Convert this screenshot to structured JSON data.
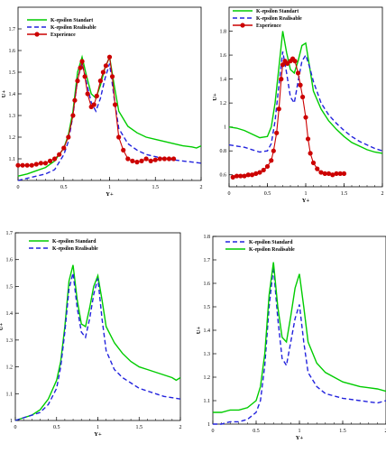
{
  "chart_data": [
    {
      "type": "line",
      "xlabel": "Y+",
      "ylabel": "U+",
      "xlim": [
        0,
        2
      ],
      "ylim": [
        1,
        1.8
      ],
      "xticks": [
        "0",
        "0.5",
        "1",
        "1.5",
        "2"
      ],
      "yticks": [
        "1.1",
        "1.2",
        "1.3",
        "1.4",
        "1.5",
        "1.6",
        "1.7"
      ],
      "legend_position": "top-left",
      "series": [
        {
          "name": "K-epsilon Standart",
          "color": "#00cc00",
          "style": "solid",
          "x": [
            0,
            0.1,
            0.2,
            0.3,
            0.4,
            0.5,
            0.55,
            0.6,
            0.65,
            0.7,
            0.75,
            0.8,
            0.85,
            0.9,
            0.95,
            1.0,
            1.05,
            1.1,
            1.2,
            1.3,
            1.4,
            1.5,
            1.6,
            1.7,
            1.8,
            1.9,
            1.95,
            2.0
          ],
          "y": [
            1.02,
            1.03,
            1.045,
            1.06,
            1.09,
            1.15,
            1.21,
            1.32,
            1.5,
            1.57,
            1.48,
            1.4,
            1.38,
            1.44,
            1.52,
            1.57,
            1.44,
            1.32,
            1.25,
            1.22,
            1.2,
            1.19,
            1.18,
            1.17,
            1.16,
            1.155,
            1.15,
            1.16
          ]
        },
        {
          "name": "K-epsilon Realisable",
          "color": "#2222dd",
          "style": "dashed",
          "x": [
            0,
            0.1,
            0.2,
            0.3,
            0.4,
            0.5,
            0.55,
            0.6,
            0.65,
            0.7,
            0.75,
            0.8,
            0.85,
            0.9,
            0.95,
            1.0,
            1.05,
            1.1,
            1.2,
            1.3,
            1.4,
            1.5,
            1.6,
            1.7,
            1.8,
            1.9,
            2.0
          ],
          "y": [
            1.0,
            1.01,
            1.02,
            1.03,
            1.05,
            1.12,
            1.18,
            1.3,
            1.47,
            1.54,
            1.45,
            1.36,
            1.32,
            1.38,
            1.47,
            1.54,
            1.38,
            1.24,
            1.17,
            1.14,
            1.12,
            1.11,
            1.1,
            1.095,
            1.09,
            1.085,
            1.08
          ]
        },
        {
          "name": "Experience",
          "color": "#cc0000",
          "style": "solid-circle",
          "x": [
            0,
            0.05,
            0.1,
            0.15,
            0.2,
            0.25,
            0.3,
            0.35,
            0.4,
            0.45,
            0.5,
            0.55,
            0.6,
            0.62,
            0.65,
            0.68,
            0.7,
            0.73,
            0.76,
            0.8,
            0.83,
            0.86,
            0.9,
            0.93,
            0.96,
            1.0,
            1.03,
            1.06,
            1.1,
            1.15,
            1.2,
            1.25,
            1.3,
            1.35,
            1.4,
            1.45,
            1.5,
            1.55,
            1.6,
            1.65,
            1.7
          ],
          "y": [
            1.07,
            1.07,
            1.07,
            1.07,
            1.075,
            1.08,
            1.08,
            1.09,
            1.1,
            1.12,
            1.15,
            1.2,
            1.3,
            1.37,
            1.46,
            1.52,
            1.55,
            1.48,
            1.4,
            1.34,
            1.35,
            1.39,
            1.46,
            1.5,
            1.53,
            1.57,
            1.48,
            1.35,
            1.2,
            1.14,
            1.1,
            1.09,
            1.085,
            1.09,
            1.1,
            1.09,
            1.095,
            1.1,
            1.1,
            1.1,
            1.1
          ]
        }
      ]
    },
    {
      "type": "line",
      "xlabel": "Y+",
      "ylabel": "U+",
      "xlim": [
        0,
        2
      ],
      "ylim": [
        0.5,
        2
      ],
      "xticks": [
        "0",
        "0.5",
        "1",
        "1.5",
        "2"
      ],
      "yticks": [
        "0.6",
        "0.8",
        "1",
        "1.2",
        "1.4",
        "1.6",
        "1.8"
      ],
      "legend_position": "top-center",
      "series": [
        {
          "name": "K-epsilon Standart",
          "color": "#00cc00",
          "style": "solid",
          "x": [
            0,
            0.1,
            0.2,
            0.3,
            0.4,
            0.5,
            0.55,
            0.6,
            0.65,
            0.7,
            0.75,
            0.8,
            0.85,
            0.9,
            0.95,
            1.0,
            1.05,
            1.1,
            1.2,
            1.3,
            1.4,
            1.5,
            1.6,
            1.7,
            1.8,
            1.9,
            2.0
          ],
          "y": [
            1.0,
            0.99,
            0.97,
            0.94,
            0.91,
            0.92,
            1.0,
            1.2,
            1.5,
            1.8,
            1.62,
            1.48,
            1.45,
            1.55,
            1.68,
            1.7,
            1.5,
            1.3,
            1.15,
            1.05,
            0.98,
            0.92,
            0.87,
            0.84,
            0.81,
            0.79,
            0.78
          ]
        },
        {
          "name": "K-epsilon Realisable",
          "color": "#2222dd",
          "style": "dashed",
          "x": [
            0,
            0.1,
            0.2,
            0.3,
            0.4,
            0.5,
            0.55,
            0.6,
            0.65,
            0.7,
            0.75,
            0.8,
            0.85,
            0.9,
            0.95,
            1.0,
            1.05,
            1.1,
            1.2,
            1.3,
            1.4,
            1.5,
            1.6,
            1.7,
            1.8,
            1.9,
            2.0
          ],
          "y": [
            0.85,
            0.84,
            0.83,
            0.81,
            0.79,
            0.8,
            0.86,
            1.05,
            1.35,
            1.63,
            1.45,
            1.25,
            1.2,
            1.38,
            1.55,
            1.6,
            1.5,
            1.38,
            1.2,
            1.1,
            1.03,
            0.97,
            0.92,
            0.88,
            0.85,
            0.82,
            0.8
          ]
        },
        {
          "name": "Experience",
          "color": "#cc0000",
          "style": "solid-circle",
          "x": [
            0.05,
            0.1,
            0.15,
            0.2,
            0.25,
            0.3,
            0.35,
            0.4,
            0.45,
            0.5,
            0.55,
            0.58,
            0.62,
            0.65,
            0.68,
            0.7,
            0.73,
            0.76,
            0.8,
            0.83,
            0.86,
            0.9,
            0.93,
            0.96,
            1.0,
            1.03,
            1.06,
            1.1,
            1.15,
            1.2,
            1.25,
            1.3,
            1.35,
            1.4,
            1.45,
            1.5
          ],
          "y": [
            0.58,
            0.59,
            0.59,
            0.59,
            0.6,
            0.6,
            0.61,
            0.62,
            0.64,
            0.67,
            0.72,
            0.8,
            0.95,
            1.15,
            1.4,
            1.52,
            1.55,
            1.53,
            1.55,
            1.57,
            1.55,
            1.45,
            1.35,
            1.25,
            1.08,
            0.9,
            0.78,
            0.7,
            0.65,
            0.62,
            0.61,
            0.61,
            0.6,
            0.61,
            0.61,
            0.61
          ]
        }
      ]
    },
    {
      "type": "line",
      "xlabel": "Y+",
      "ylabel": "U+",
      "xlim": [
        0,
        2
      ],
      "ylim": [
        1,
        1.7
      ],
      "xticks": [
        "0",
        "0.5",
        "1",
        "1.5",
        "2"
      ],
      "yticks": [
        "1",
        "1.1",
        "1.2",
        "1.3",
        "1.4",
        "1.5",
        "1.6",
        "1.7"
      ],
      "legend_position": "top-left",
      "series": [
        {
          "name": "K-epsilon Standard",
          "color": "#00cc00",
          "style": "solid",
          "x": [
            0,
            0.1,
            0.2,
            0.3,
            0.4,
            0.5,
            0.55,
            0.6,
            0.65,
            0.7,
            0.75,
            0.8,
            0.85,
            0.9,
            0.95,
            1.0,
            1.05,
            1.1,
            1.2,
            1.3,
            1.4,
            1.5,
            1.6,
            1.7,
            1.8,
            1.9,
            1.95,
            2.0
          ],
          "y": [
            1.0,
            1.01,
            1.02,
            1.04,
            1.08,
            1.15,
            1.22,
            1.35,
            1.52,
            1.58,
            1.45,
            1.36,
            1.35,
            1.42,
            1.5,
            1.54,
            1.45,
            1.35,
            1.29,
            1.25,
            1.22,
            1.2,
            1.19,
            1.18,
            1.17,
            1.16,
            1.15,
            1.16
          ]
        },
        {
          "name": "K-epsilon Realisable",
          "color": "#2222dd",
          "style": "dashed",
          "x": [
            0,
            0.1,
            0.2,
            0.3,
            0.4,
            0.5,
            0.55,
            0.6,
            0.65,
            0.7,
            0.75,
            0.8,
            0.85,
            0.9,
            0.95,
            1.0,
            1.05,
            1.1,
            1.2,
            1.3,
            1.4,
            1.5,
            1.6,
            1.7,
            1.8,
            1.9,
            2.0
          ],
          "y": [
            1.0,
            1.01,
            1.02,
            1.03,
            1.06,
            1.12,
            1.2,
            1.33,
            1.49,
            1.55,
            1.42,
            1.33,
            1.31,
            1.38,
            1.47,
            1.53,
            1.38,
            1.26,
            1.19,
            1.16,
            1.14,
            1.12,
            1.11,
            1.1,
            1.09,
            1.085,
            1.08
          ]
        }
      ]
    },
    {
      "type": "line",
      "xlabel": "Y+",
      "ylabel": "U+",
      "xlim": [
        0,
        2
      ],
      "ylim": [
        1,
        1.8
      ],
      "xticks": [
        "0",
        "0.5",
        "1",
        "1.5",
        "2"
      ],
      "yticks": [
        "1",
        "1.1",
        "1.2",
        "1.3",
        "1.4",
        "1.5",
        "1.6",
        "1.7",
        "1.8"
      ],
      "legend_position": "top-center",
      "series": [
        {
          "name": "K-epsilon Standard",
          "color": "#2222dd",
          "style": "dashed",
          "x": [
            0,
            0.1,
            0.2,
            0.3,
            0.4,
            0.5,
            0.55,
            0.6,
            0.65,
            0.7,
            0.75,
            0.8,
            0.85,
            0.9,
            0.95,
            1.0,
            1.05,
            1.1,
            1.2,
            1.3,
            1.4,
            1.5,
            1.6,
            1.7,
            1.8,
            1.9,
            2.0
          ],
          "y": [
            1.0,
            1.0,
            1.01,
            1.01,
            1.02,
            1.05,
            1.1,
            1.25,
            1.5,
            1.67,
            1.45,
            1.28,
            1.25,
            1.35,
            1.45,
            1.51,
            1.35,
            1.22,
            1.16,
            1.13,
            1.12,
            1.11,
            1.105,
            1.1,
            1.095,
            1.09,
            1.1
          ]
        },
        {
          "name": "K-epsilon Realisable",
          "color": "#00cc00",
          "style": "solid",
          "x": [
            0,
            0.1,
            0.2,
            0.3,
            0.4,
            0.5,
            0.55,
            0.6,
            0.65,
            0.7,
            0.75,
            0.8,
            0.85,
            0.9,
            0.95,
            1.0,
            1.05,
            1.1,
            1.2,
            1.3,
            1.4,
            1.5,
            1.6,
            1.7,
            1.8,
            1.9,
            2.0
          ],
          "y": [
            1.05,
            1.05,
            1.06,
            1.06,
            1.07,
            1.1,
            1.16,
            1.3,
            1.55,
            1.69,
            1.5,
            1.37,
            1.35,
            1.46,
            1.58,
            1.64,
            1.5,
            1.35,
            1.26,
            1.22,
            1.2,
            1.18,
            1.17,
            1.16,
            1.155,
            1.15,
            1.14
          ]
        }
      ]
    }
  ]
}
